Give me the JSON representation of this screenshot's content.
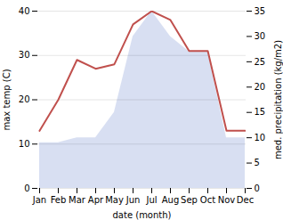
{
  "chart_data": {
    "type": "line",
    "categories": [
      "Jan",
      "Feb",
      "Mar",
      "Apr",
      "May",
      "Jun",
      "Jul",
      "Aug",
      "Sep",
      "Oct",
      "Nov",
      "Dec"
    ],
    "xlabel": "date (month)",
    "ylabel": "max temp (C)",
    "y2label": "med. precipitation (kg/m2)",
    "series": [
      {
        "type": "area",
        "axis": "y2",
        "color": "#b8c4e8",
        "values": [
          9,
          9,
          10,
          10,
          15,
          30,
          35,
          30,
          27,
          27,
          10,
          10
        ]
      },
      {
        "type": "line",
        "color": "#c0504d",
        "values": [
          13,
          20,
          29,
          27,
          28,
          37,
          40,
          38,
          31,
          31,
          13,
          13
        ]
      }
    ],
    "ylim": [
      0,
      40
    ],
    "yticks": [
      0,
      10,
      20,
      30,
      40
    ],
    "y2lim": [
      0,
      35
    ],
    "y2ticks": [
      0,
      5,
      10,
      15,
      20,
      25,
      30,
      35
    ],
    "grid": true
  }
}
